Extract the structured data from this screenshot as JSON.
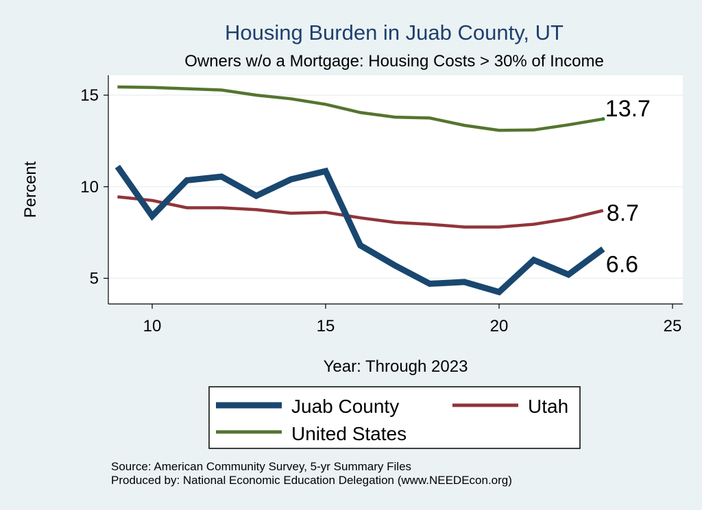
{
  "chart_data": {
    "type": "line",
    "title": "Housing Burden in Juab County, UT",
    "subtitle": "Owners w/o a Mortgage: Housing Costs > 30% of Income",
    "xlabel": "Year: Through 2023",
    "ylabel": "Percent",
    "xlim": [
      9,
      25
    ],
    "ylim": [
      4,
      16
    ],
    "xticks": [
      10,
      15,
      20,
      25
    ],
    "yticks": [
      5,
      10,
      15
    ],
    "grid": true,
    "legend": "bottom",
    "x": [
      9,
      10,
      11,
      12,
      13,
      14,
      15,
      16,
      17,
      18,
      19,
      20,
      21,
      22,
      23
    ],
    "series": [
      {
        "name": "Juab County",
        "color": "#1a476f",
        "values": [
          11.1,
          8.4,
          10.35,
          10.55,
          9.5,
          10.4,
          10.85,
          6.8,
          5.7,
          4.7,
          4.8,
          4.25,
          6.0,
          5.2,
          6.6
        ],
        "end_label": "6.6"
      },
      {
        "name": "Utah",
        "color": "#90353b",
        "values": [
          9.45,
          9.25,
          8.85,
          8.85,
          8.75,
          8.55,
          8.6,
          8.3,
          8.05,
          7.95,
          7.8,
          7.8,
          7.95,
          8.25,
          8.7
        ],
        "end_label": "8.7"
      },
      {
        "name": "United States",
        "color": "#55752f",
        "values": [
          15.45,
          15.42,
          15.35,
          15.28,
          15.0,
          14.8,
          14.5,
          14.05,
          13.8,
          13.75,
          13.35,
          13.08,
          13.1,
          13.38,
          13.7
        ],
        "end_label": "13.7"
      }
    ],
    "source": "Source: American Community Survey, 5-yr Summary Files",
    "producer": "Produced by: National Economic Education Delegation (www.NEEDEcon.org)"
  }
}
